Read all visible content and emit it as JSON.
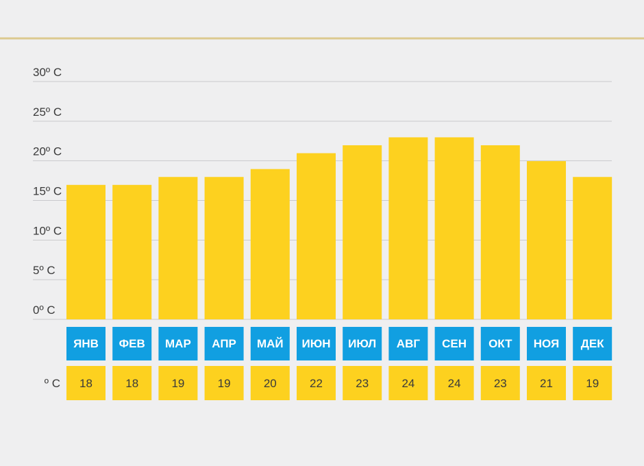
{
  "chart_data": {
    "type": "bar",
    "categories": [
      "ЯНВ",
      "ФЕВ",
      "МАР",
      "АПР",
      "МАЙ",
      "ИЮН",
      "ИЮЛ",
      "АВГ",
      "СЕН",
      "ОКТ",
      "НОЯ",
      "ДЕК"
    ],
    "values": [
      18,
      18,
      19,
      19,
      20,
      22,
      23,
      24,
      24,
      23,
      21,
      19
    ],
    "value_labels": [
      "18",
      "18",
      "19",
      "19",
      "20",
      "22",
      "23",
      "24",
      "24",
      "23",
      "21",
      "19"
    ],
    "ylim": [
      0,
      30
    ],
    "yticks": [
      0,
      5,
      10,
      15,
      20,
      25,
      30
    ],
    "ytick_labels": [
      "0º C",
      "5º C",
      "10º C",
      "15º C",
      "20º C",
      "25º C",
      "30º C"
    ],
    "value_row_label": "º C",
    "grid": true,
    "colors": {
      "bar": "#fdd11f",
      "month_box": "#119fe1",
      "value_box": "#fdd11f",
      "grid": "#c9c9cc",
      "top_rule": "#dcc98f"
    }
  }
}
